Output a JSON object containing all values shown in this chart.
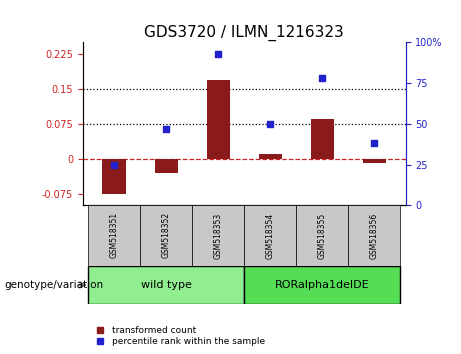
{
  "title": "GDS3720 / ILMN_1216323",
  "samples": [
    "GSM518351",
    "GSM518352",
    "GSM518353",
    "GSM518354",
    "GSM518355",
    "GSM518356"
  ],
  "red_bars": [
    -0.075,
    -0.03,
    0.17,
    0.01,
    0.085,
    -0.01
  ],
  "blue_dots": [
    25,
    47,
    93,
    50,
    78,
    38
  ],
  "ylim_left": [
    -0.1,
    0.25
  ],
  "ylim_right": [
    0,
    100
  ],
  "yticks_left": [
    -0.075,
    0,
    0.075,
    0.15,
    0.225
  ],
  "yticks_right": [
    0,
    25,
    50,
    75,
    100
  ],
  "hlines": [
    0.075,
    0.15
  ],
  "red_color": "#8B1A1A",
  "blue_color": "#2222cc",
  "dashed_zero_color": "#cc2222",
  "group1_label": "wild type",
  "group2_label": "RORalpha1delDE",
  "group1_color": "#90ee90",
  "group2_color": "#55dd55",
  "group1_indices": [
    0,
    1,
    2
  ],
  "group2_indices": [
    3,
    4,
    5
  ],
  "genotype_label": "genotype/variation",
  "legend_red": "transformed count",
  "legend_blue": "percentile rank within the sample",
  "title_fontsize": 11,
  "tick_fontsize": 7,
  "label_fontsize": 7,
  "bar_width": 0.45,
  "cell_bg": "#c8c8c8"
}
